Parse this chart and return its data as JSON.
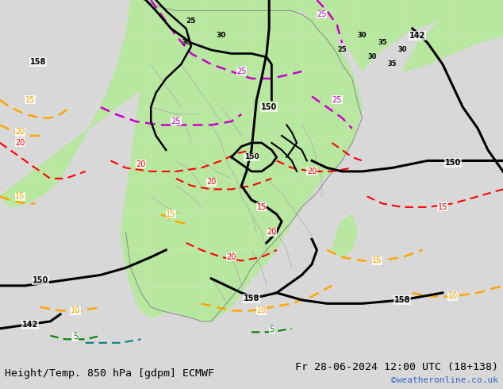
{
  "title_left": "Height/Temp. 850 hPa [gdpm] ECMWF",
  "title_right": "Fr 28-06-2024 12:00 UTC (18+138)",
  "watermark": "©weatheronline.co.uk",
  "bg_color": "#d8d8d8",
  "map_bg": "#f0f0f0",
  "land_green": "#b8e8a0",
  "figsize": [
    6.34,
    4.9
  ],
  "dpi": 100,
  "bottom_bar_height": 0.082,
  "bottom_bar_color": "#f0f0f0",
  "title_fontsize": 9.5,
  "watermark_color": "#3366cc",
  "watermark_fontsize": 8
}
